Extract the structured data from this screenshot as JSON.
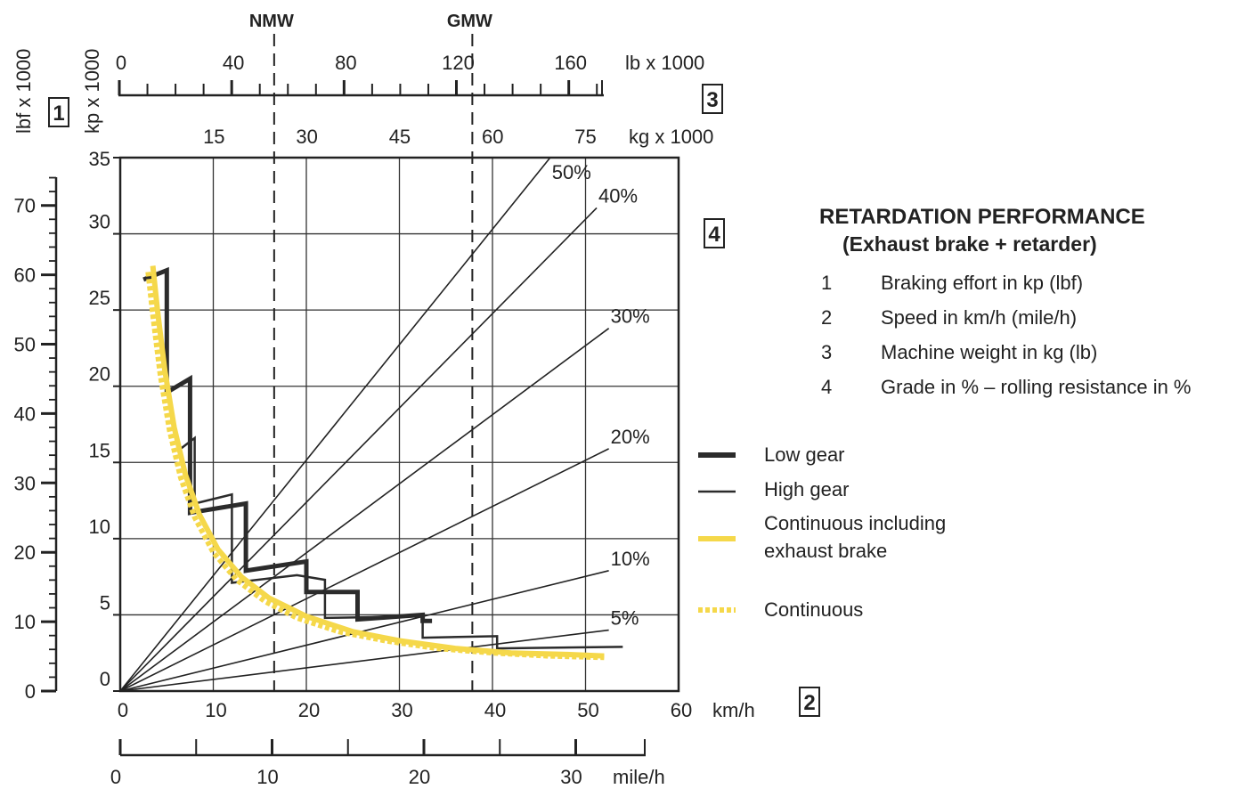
{
  "chart_data": {
    "type": "line",
    "title": "RETARDATION PERFORMANCE",
    "subtitle": "(Exhaust brake + retarder)",
    "axes": {
      "y_lbf": {
        "label": "lbf x 1000",
        "ticks": [
          "0",
          "10",
          "20",
          "30",
          "40",
          "50",
          "60",
          "70"
        ]
      },
      "y_kp": {
        "label": "kp x 1000",
        "ticks": [
          "0",
          "5",
          "10",
          "15",
          "20",
          "25",
          "30",
          "35"
        ],
        "range": [
          0,
          35
        ]
      },
      "x_kmh": {
        "unit": "km/h",
        "ticks": [
          "0",
          "10",
          "20",
          "30",
          "40",
          "50",
          "60"
        ],
        "range": [
          0,
          60
        ]
      },
      "x_mph": {
        "unit": "mile/h",
        "ticks": [
          "0",
          "10",
          "20",
          "30"
        ]
      },
      "weight_lb": {
        "unit": "lb x 1000",
        "ticks": [
          "0",
          "40",
          "80",
          "120",
          "160"
        ]
      },
      "weight_kg": {
        "unit": "kg x 1000",
        "ticks": [
          "15",
          "30",
          "45",
          "60",
          "75"
        ]
      }
    },
    "box_numbers": [
      "1",
      "2",
      "3",
      "4"
    ],
    "markers": [
      {
        "label": "NMW",
        "weight_kg": 25
      },
      {
        "label": "GMW",
        "weight_kg": 57
      }
    ],
    "grade_lines": [
      {
        "label": "50%",
        "end": [
          46.2,
          35
        ]
      },
      {
        "label": "40%",
        "end": [
          51.2,
          31.7
        ]
      },
      {
        "label": "30%",
        "end": [
          52.5,
          23.8
        ]
      },
      {
        "label": "20%",
        "end": [
          52.5,
          15.9
        ]
      },
      {
        "label": "10%",
        "end": [
          52.5,
          7.9
        ]
      },
      {
        "label": "5%",
        "end": [
          52.5,
          4.0
        ]
      }
    ],
    "series": [
      {
        "name": "Low gear",
        "color": "#2b2b2b",
        "x": [
          2.5,
          5.0,
          5.0,
          7.5,
          7.5,
          13.5,
          13.5,
          20.0,
          20.0,
          25.5,
          25.5,
          32.5,
          32.5,
          33.5
        ],
        "y": [
          27.0,
          27.6,
          19.6,
          20.5,
          11.7,
          12.3,
          7.9,
          8.5,
          6.5,
          6.5,
          4.7,
          5.0,
          4.6,
          4.6
        ]
      },
      {
        "name": "High gear",
        "color": "#2b2b2b",
        "x": [
          6.5,
          8.0,
          8.0,
          12.0,
          12.0,
          19.0,
          22.0,
          22.0,
          32.5,
          32.5,
          40.5,
          40.5,
          54.0
        ],
        "y": [
          15.9,
          16.6,
          12.3,
          12.9,
          7.1,
          7.6,
          7.3,
          4.8,
          4.9,
          3.5,
          3.6,
          2.8,
          2.9
        ]
      },
      {
        "name": "Continuous including exhaust brake",
        "color": "#f5d84a",
        "x": [
          3.5,
          4.0,
          4.8,
          5.8,
          7.0,
          8.5,
          10.5,
          13.0,
          16.0,
          20.0,
          25.0,
          30.0,
          36.0,
          42.0,
          48.0,
          52.0
        ],
        "y": [
          27.9,
          25.0,
          21.0,
          17.3,
          14.2,
          11.6,
          9.3,
          7.5,
          6.1,
          4.9,
          3.9,
          3.3,
          2.8,
          2.5,
          2.4,
          2.3
        ]
      },
      {
        "name": "Continuous",
        "color": "#f5d84a",
        "x": [
          3.0,
          3.5,
          4.3,
          5.3,
          6.5,
          8.0,
          10.0,
          12.5,
          15.5,
          19.0,
          23.5,
          28.5,
          34.0,
          40.0,
          46.0,
          52.0
        ],
        "y": [
          27.5,
          24.7,
          20.8,
          17.1,
          14.0,
          11.4,
          9.1,
          7.3,
          5.9,
          4.8,
          3.9,
          3.3,
          2.8,
          2.5,
          2.3,
          2.2
        ]
      }
    ],
    "legend": {
      "numbered": [
        {
          "num": "1",
          "text": "Braking effort in kp (lbf)"
        },
        {
          "num": "2",
          "text": "Speed in km/h (mile/h)"
        },
        {
          "num": "3",
          "text": "Machine weight in kg (lb)"
        },
        {
          "num": "4",
          "text": "Grade in % – rolling resistance in %"
        }
      ],
      "lines": [
        {
          "label": "Low gear"
        },
        {
          "label": "High gear"
        },
        {
          "label": "Continuous including exhaust brake"
        },
        {
          "label": "Continuous"
        }
      ]
    }
  }
}
